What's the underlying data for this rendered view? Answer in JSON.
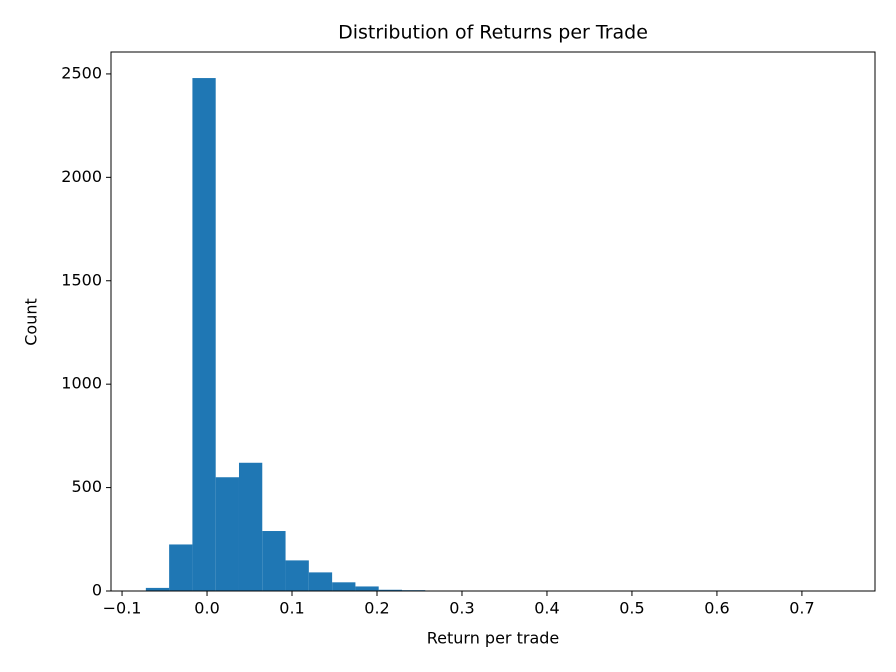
{
  "chart_data": {
    "type": "histogram",
    "title": "Distribution of Returns per Trade",
    "x_label": "Return per trade",
    "y_label": "Count",
    "bins": [
      -0.072,
      -0.0446,
      -0.0172,
      0.0102,
      0.0376,
      0.065,
      0.0924,
      0.1198,
      0.1472,
      0.1746,
      0.202,
      0.2294,
      0.2568,
      0.2842,
      0.3116,
      0.339,
      0.3664,
      0.3938,
      0.4212,
      0.4486,
      0.476,
      0.5034,
      0.5308,
      0.5582,
      0.5856,
      0.613,
      0.6404,
      0.6678,
      0.6952,
      0.7226,
      0.75
    ],
    "values": [
      15,
      225,
      2480,
      550,
      620,
      290,
      148,
      90,
      42,
      22,
      6,
      4,
      2,
      1,
      1,
      1,
      0,
      1,
      0,
      1,
      0,
      0,
      1,
      0,
      0,
      0,
      0,
      0,
      0,
      1
    ],
    "color": "#1f77b4",
    "xlim": [
      -0.113,
      0.786
    ],
    "xticks": [
      {
        "value": -0.1,
        "label": "−0.1"
      },
      {
        "value": 0,
        "label": "0.0"
      },
      0.1,
      0.2,
      0.3,
      0.4,
      0.5,
      0.6,
      0.7
    ],
    "ylim": [
      0,
      2606
    ],
    "yticks": [
      0,
      500,
      1000,
      1500,
      2000,
      2500
    ],
    "grid": false
  }
}
